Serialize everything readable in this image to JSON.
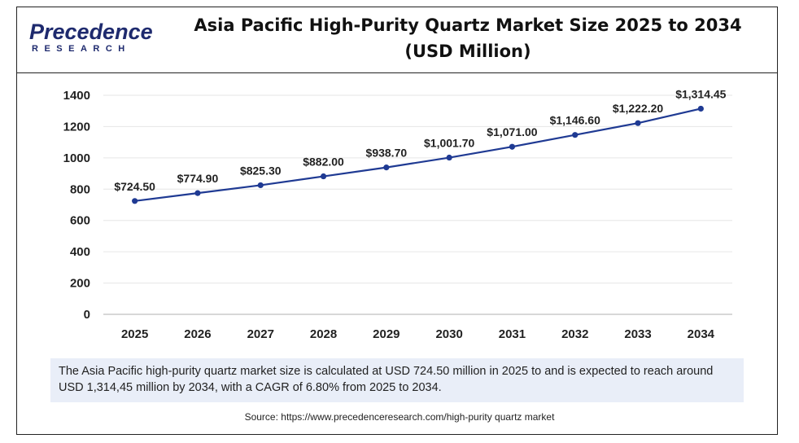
{
  "brand": {
    "name": "Precedence",
    "sub": "RESEARCH",
    "color": "#1e2a6e"
  },
  "title_line1": "Asia Pacific High-Purity Quartz Market Size 2025 to 2034",
  "title_line2": "(USD Million)",
  "note": "The Asia Pacific  high-purity quartz market  size is calculated at USD  724.50 million in 2025 to and is expected to reach around USD 1,314,45 million by 2034, with a CAGR of 6.80% from 2025 to 2034.",
  "source": "Source: https://www.precedenceresearch.com/high-purity quartz market",
  "colors": {
    "line": "#1f3a93",
    "marker": "#1f3a93",
    "note_bg": "#e9eef8"
  },
  "chart_data": {
    "type": "line",
    "title": "Asia Pacific High-Purity Quartz Market Size 2025 to 2034 (USD Million)",
    "categories": [
      "2025",
      "2026",
      "2027",
      "2028",
      "2029",
      "2030",
      "2031",
      "2032",
      "2033",
      "2034"
    ],
    "values": [
      724.5,
      774.9,
      825.3,
      882.0,
      938.7,
      1001.7,
      1071.0,
      1146.6,
      1222.2,
      1314.45
    ],
    "data_labels": [
      "$724.50",
      "$774.90",
      "$825.30",
      "$882.00",
      "$938.70",
      "$1,001.70",
      "$1,071.00",
      "$1,146.60",
      "$1,222.20",
      "$1,314.45"
    ],
    "ylim": [
      0,
      1400
    ],
    "yticks": [
      "0",
      "200",
      "400",
      "600",
      "800",
      "1000",
      "1200",
      "1400"
    ],
    "grid": true,
    "legend": "none"
  }
}
